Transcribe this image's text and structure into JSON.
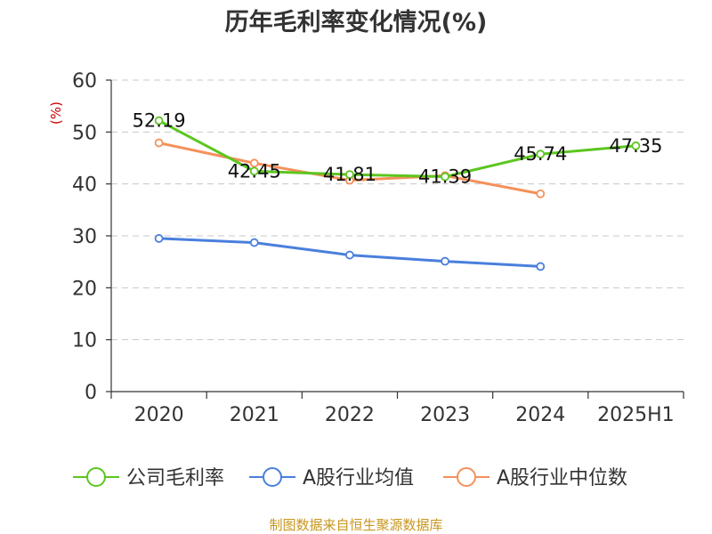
{
  "chart_data": {
    "type": "line",
    "title": "历年毛利率变化情况(%)",
    "ylabel": "(%)",
    "xlabel": "",
    "ylim": [
      0,
      60
    ],
    "yticks": [
      0,
      10,
      20,
      30,
      40,
      50,
      60
    ],
    "categories": [
      "2020",
      "2021",
      "2022",
      "2023",
      "2024",
      "2025H1"
    ],
    "grid": true,
    "legend_position": "bottom",
    "series": [
      {
        "name": "公司毛利率",
        "color": "#5cc61f",
        "values": [
          52.19,
          42.45,
          41.81,
          41.39,
          45.74,
          47.35
        ],
        "labels": [
          "52.19",
          "42.45",
          "41.81",
          "41.39",
          "45.74",
          "47.35"
        ]
      },
      {
        "name": "A股行业均值",
        "color": "#4a7fdc",
        "values": [
          29.5,
          28.7,
          26.3,
          25.1,
          24.1,
          null
        ]
      },
      {
        "name": "A股行业中位数",
        "color": "#f5905a",
        "values": [
          47.9,
          44.0,
          40.7,
          41.6,
          38.1,
          null
        ]
      }
    ]
  },
  "footer": {
    "source": "制图数据来自恒生聚源数据库"
  }
}
